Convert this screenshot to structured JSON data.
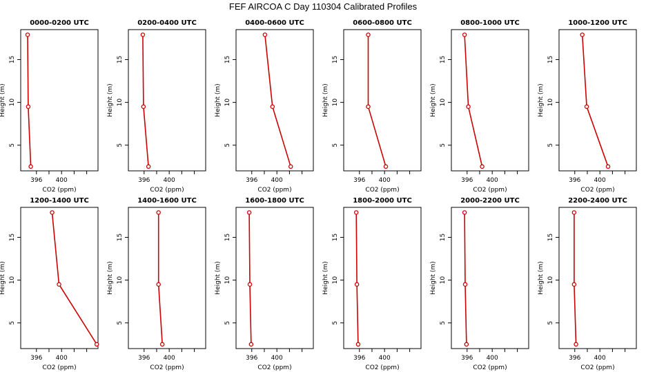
{
  "title": "FEF AIRCOA C  Day 110304  Calibrated Profiles",
  "chart_data": {
    "type": "line",
    "xlabel": "CO2 (ppm)",
    "ylabel": "Height (m)",
    "xlim": [
      393.5,
      405.8
    ],
    "ylim": [
      2.0,
      18.5
    ],
    "x_ticks": [
      396,
      400
    ],
    "x_minor_ticks": [
      398,
      402,
      404
    ],
    "y_ticks": [
      5,
      10,
      15
    ],
    "heights": [
      17.9,
      9.5,
      2.5
    ],
    "line_color": "#cc0000",
    "panels": [
      {
        "title": "0000-0200 UTC",
        "co2": [
          394.6,
          394.7,
          395.1
        ]
      },
      {
        "title": "0200-0400 UTC",
        "co2": [
          395.8,
          395.9,
          396.7
        ]
      },
      {
        "title": "0400-0600 UTC",
        "co2": [
          398.1,
          399.3,
          402.2
        ]
      },
      {
        "title": "0600-0800 UTC",
        "co2": [
          397.4,
          397.4,
          400.2
        ]
      },
      {
        "title": "0800-1000 UTC",
        "co2": [
          395.6,
          396.2,
          398.4
        ]
      },
      {
        "title": "1000-1200 UTC",
        "co2": [
          397.2,
          397.9,
          401.3
        ]
      },
      {
        "title": "1200-1400 UTC",
        "co2": [
          398.5,
          399.6,
          405.6
        ]
      },
      {
        "title": "1400-1600 UTC",
        "co2": [
          398.3,
          398.3,
          398.9
        ]
      },
      {
        "title": "1600-1800 UTC",
        "co2": [
          395.6,
          395.7,
          395.9
        ]
      },
      {
        "title": "1800-2000 UTC",
        "co2": [
          395.5,
          395.6,
          395.8
        ]
      },
      {
        "title": "2000-2200 UTC",
        "co2": [
          395.6,
          395.7,
          395.9
        ]
      },
      {
        "title": "2200-2400 UTC",
        "co2": [
          395.9,
          395.9,
          396.2
        ]
      }
    ]
  }
}
